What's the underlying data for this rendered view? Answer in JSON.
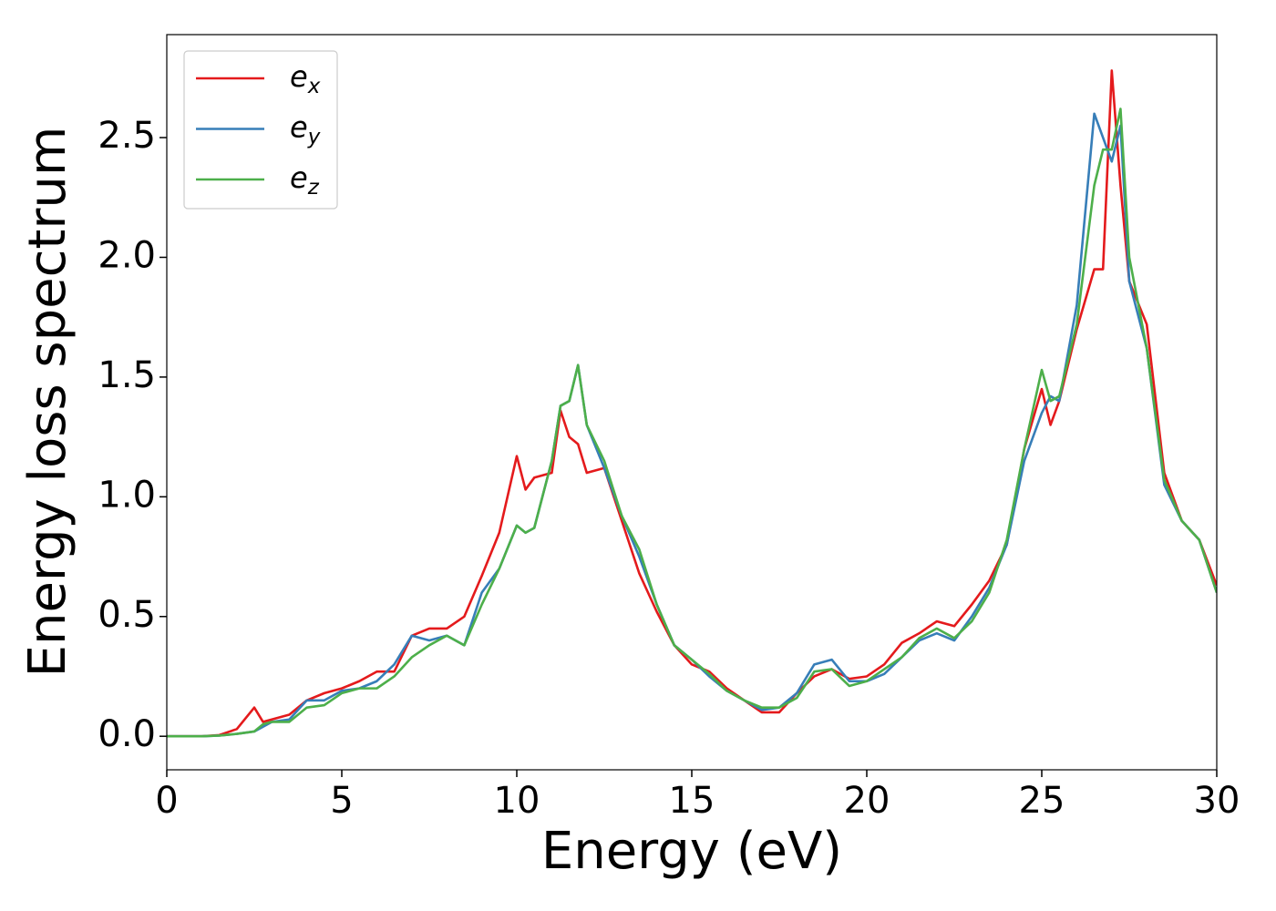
{
  "chart_data": {
    "type": "line",
    "xlabel": "Energy (eV)",
    "ylabel": "Energy loss spectrum",
    "x": [
      0,
      1,
      1.5,
      2,
      2.5,
      2.75,
      3,
      3.5,
      4,
      4.5,
      5,
      5.5,
      6,
      6.5,
      7,
      7.5,
      8,
      8.5,
      9,
      9.5,
      10,
      10.25,
      10.5,
      11,
      11.25,
      11.5,
      11.75,
      12,
      12.5,
      13,
      13.5,
      14,
      14.5,
      15,
      15.5,
      16,
      16.5,
      17,
      17.5,
      18,
      18.5,
      19,
      19.5,
      20,
      20.5,
      21,
      21.5,
      22,
      22.5,
      23,
      23.5,
      24,
      24.5,
      25,
      25.25,
      25.5,
      26,
      26.5,
      26.75,
      27,
      27.25,
      27.5,
      28,
      28.5,
      29,
      29.5,
      30
    ],
    "series": [
      {
        "name": "ex",
        "color": "#e41a1c",
        "values": [
          0,
          0,
          0.005,
          0.03,
          0.12,
          0.06,
          0.07,
          0.09,
          0.15,
          0.18,
          0.2,
          0.23,
          0.27,
          0.27,
          0.42,
          0.45,
          0.45,
          0.5,
          0.67,
          0.85,
          1.17,
          1.03,
          1.08,
          1.1,
          1.36,
          1.25,
          1.22,
          1.1,
          1.12,
          0.9,
          0.68,
          0.52,
          0.38,
          0.3,
          0.27,
          0.2,
          0.15,
          0.1,
          0.1,
          0.18,
          0.25,
          0.28,
          0.24,
          0.25,
          0.3,
          0.39,
          0.43,
          0.48,
          0.46,
          0.55,
          0.65,
          0.8,
          1.2,
          1.45,
          1.3,
          1.4,
          1.7,
          1.95,
          1.95,
          2.78,
          2.3,
          1.9,
          1.72,
          1.1,
          0.9,
          0.82,
          0.63
        ]
      },
      {
        "name": "ey",
        "color": "#377eb8",
        "values": [
          0,
          0,
          0.003,
          0.01,
          0.02,
          0.04,
          0.06,
          0.07,
          0.15,
          0.15,
          0.19,
          0.2,
          0.23,
          0.3,
          0.42,
          0.4,
          0.42,
          0.38,
          0.6,
          0.7,
          0.88,
          0.85,
          0.87,
          1.15,
          1.38,
          1.4,
          1.55,
          1.3,
          1.12,
          0.92,
          0.75,
          0.55,
          0.38,
          0.32,
          0.25,
          0.19,
          0.15,
          0.11,
          0.12,
          0.18,
          0.3,
          0.32,
          0.23,
          0.23,
          0.26,
          0.33,
          0.4,
          0.43,
          0.4,
          0.5,
          0.62,
          0.8,
          1.15,
          1.35,
          1.42,
          1.4,
          1.8,
          2.6,
          2.5,
          2.4,
          2.55,
          1.9,
          1.62,
          1.05,
          0.9,
          0.82,
          0.6
        ]
      },
      {
        "name": "ez",
        "color": "#4daf4a",
        "values": [
          0,
          0,
          0.003,
          0.01,
          0.02,
          0.05,
          0.06,
          0.06,
          0.12,
          0.13,
          0.18,
          0.2,
          0.2,
          0.25,
          0.33,
          0.38,
          0.42,
          0.38,
          0.55,
          0.7,
          0.88,
          0.85,
          0.87,
          1.15,
          1.38,
          1.4,
          1.55,
          1.3,
          1.15,
          0.92,
          0.78,
          0.55,
          0.38,
          0.32,
          0.26,
          0.19,
          0.15,
          0.12,
          0.12,
          0.16,
          0.27,
          0.28,
          0.21,
          0.23,
          0.28,
          0.33,
          0.41,
          0.45,
          0.41,
          0.48,
          0.6,
          0.82,
          1.2,
          1.53,
          1.4,
          1.42,
          1.72,
          2.3,
          2.45,
          2.45,
          2.62,
          2.0,
          1.62,
          1.07,
          0.9,
          0.82,
          0.6
        ]
      }
    ],
    "xlim": [
      0,
      30
    ],
    "xticks": [
      0,
      5,
      10,
      15,
      20,
      25,
      30
    ],
    "ylim": [
      -0.14,
      2.93
    ],
    "yticks": [
      {
        "value": 0,
        "label": "0.0"
      },
      0.5,
      {
        "value": 1,
        "label": "1.0"
      },
      1.5,
      {
        "value": 2,
        "label": "2.0"
      },
      2.5
    ],
    "grid": false,
    "legend": "upper left"
  }
}
